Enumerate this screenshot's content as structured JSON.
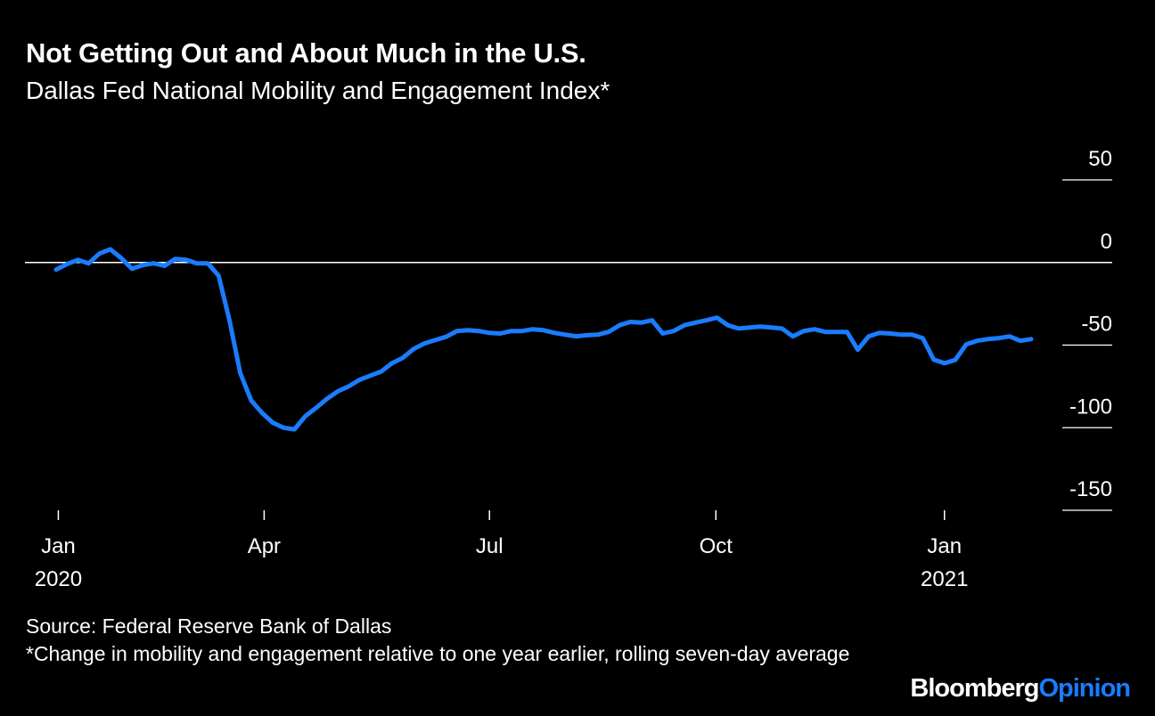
{
  "chart_data": {
    "type": "line",
    "title": "Not Getting Out and About Much in the U.S.",
    "subtitle": "Dallas Fed National Mobility and Engagement Index*",
    "source": "Source: Federal Reserve Bank of Dallas",
    "footnote": "*Change in mobility and engagement relative to one year earlier, rolling seven-day average",
    "brand": [
      "Bloomberg",
      "Opinion"
    ],
    "series": [
      {
        "color": "#1a7cff",
        "values": [
          -4.3,
          -1,
          1.6,
          -0.5,
          5.4,
          8,
          2.7,
          -3.8,
          -1.6,
          -0.5,
          -2,
          2.2,
          1.6,
          -0.5,
          -0.5,
          -8,
          -35,
          -67,
          -83.5,
          -91,
          -97,
          -100,
          -101,
          -93,
          -88,
          -82.5,
          -78,
          -75,
          -71,
          -68.5,
          -66,
          -61,
          -57.7,
          -52.3,
          -49,
          -47,
          -45,
          -41.5,
          -41,
          -41.5,
          -42.6,
          -43,
          -41.5,
          -41.5,
          -40.4,
          -41,
          -42.6,
          -43.7,
          -44.7,
          -44,
          -43.7,
          -42,
          -38,
          -36,
          -36.4,
          -35,
          -43,
          -41.5,
          -38,
          -36.4,
          -35,
          -33.4,
          -38,
          -40,
          -39.4,
          -38.8,
          -39.4,
          -40,
          -44.7,
          -41.5,
          -40.4,
          -42,
          -42,
          -42,
          -52.8,
          -44.7,
          -42.6,
          -43,
          -43.7,
          -43.7,
          -45.8,
          -58.8,
          -61,
          -59,
          -49.6,
          -47.4,
          -46.4,
          -45.8,
          -44.7,
          -47.4,
          -46.4
        ]
      }
    ],
    "xlim": [
      0,
      90
    ],
    "xticks": [
      {
        "value": 0.2,
        "label": "Jan",
        "year": "2020"
      },
      {
        "value": 19.2,
        "label": "Apr"
      },
      {
        "value": 40,
        "label": "Jul"
      },
      {
        "value": 60.9,
        "label": "Oct"
      },
      {
        "value": 82,
        "label": "Jan",
        "year": "2021"
      }
    ],
    "ylim": [
      -150,
      50
    ],
    "yticks": [
      50,
      0,
      -50,
      -100,
      -150
    ],
    "zero_line": true
  }
}
